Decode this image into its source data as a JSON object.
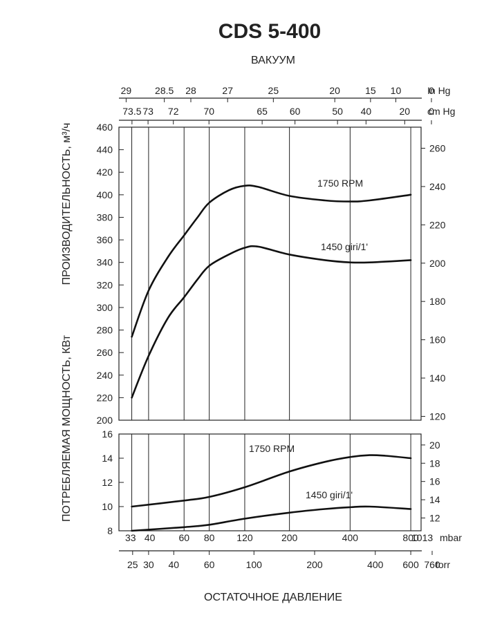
{
  "title": "CDS 5-400",
  "top_label": "ВАКУУМ",
  "bottom_label": "ОСТАТОЧНОЕ ДАВЛЕНИЕ",
  "left_label_top": "ПРОИЗВОДИТЕЛЬНОСТЬ, м³/ч",
  "left_label_bottom": "ПОТРЕБЛЯЕМАЯ МОЩНОСТЬ, КВт",
  "colors": {
    "line": "#111111",
    "text": "#222222",
    "background": "#ffffff"
  },
  "chart_data": {
    "type": "line",
    "x_scale": "log",
    "x_unit": "mbar",
    "mbar_axis": {
      "ticks": [
        {
          "value": 33,
          "label": "33"
        },
        {
          "value": 40,
          "label": "40"
        },
        {
          "value": 60,
          "label": "60"
        },
        {
          "value": 80,
          "label": "80"
        },
        {
          "value": 120,
          "label": "120"
        },
        {
          "value": 200,
          "label": "200"
        },
        {
          "value": 400,
          "label": "400"
        },
        {
          "value": 800,
          "label": "800"
        },
        {
          "value": 1013,
          "label": "1013"
        }
      ],
      "unit": "mbar"
    },
    "torr_axis": {
      "ticks": [
        {
          "value": 25,
          "label": "25"
        },
        {
          "value": 30,
          "label": "30"
        },
        {
          "value": 40,
          "label": "40"
        },
        {
          "value": 60,
          "label": "60"
        },
        {
          "value": 100,
          "label": "100"
        },
        {
          "value": 200,
          "label": "200"
        },
        {
          "value": 400,
          "label": "400"
        },
        {
          "value": 600,
          "label": "600"
        },
        {
          "value": 760,
          "label": "760"
        }
      ],
      "unit": "torr"
    },
    "inhg_axis": {
      "ticks": [
        {
          "value": 29,
          "label": "29"
        },
        {
          "value": 28.5,
          "label": "28.5"
        },
        {
          "value": 28,
          "label": "28"
        },
        {
          "value": 27,
          "label": "27"
        },
        {
          "value": 25,
          "label": "25"
        },
        {
          "value": 20,
          "label": "20"
        },
        {
          "value": 15,
          "label": "15"
        },
        {
          "value": 10,
          "label": "10"
        },
        {
          "value": 0,
          "label": "0"
        }
      ],
      "unit": "In Hg"
    },
    "cmhg_axis": {
      "ticks": [
        {
          "value": 73.5,
          "label": "73.5"
        },
        {
          "value": 73,
          "label": "73"
        },
        {
          "value": 72,
          "label": "72"
        },
        {
          "value": 70,
          "label": "70"
        },
        {
          "value": 65,
          "label": "65"
        },
        {
          "value": 60,
          "label": "60"
        },
        {
          "value": 50,
          "label": "50"
        },
        {
          "value": 40,
          "label": "40"
        },
        {
          "value": 20,
          "label": "20"
        },
        {
          "value": 0,
          "label": "0"
        }
      ],
      "unit": "cm Hg"
    },
    "grid_x_mbar": [
      33,
      40,
      60,
      80,
      120,
      200,
      400,
      800
    ],
    "capacity_panel": {
      "ylim": [
        200,
        460
      ],
      "yticks": [
        200,
        220,
        240,
        260,
        280,
        300,
        320,
        340,
        360,
        380,
        400,
        420,
        440,
        460
      ],
      "right_ylim": [
        118,
        271
      ],
      "right_yticks": [
        120,
        140,
        160,
        180,
        200,
        220,
        240,
        260
      ],
      "series": [
        {
          "name": "1750 RPM",
          "points": [
            [
              33,
              274
            ],
            [
              40,
              315
            ],
            [
              50,
              345
            ],
            [
              60,
              364
            ],
            [
              70,
              380
            ],
            [
              80,
              393
            ],
            [
              100,
              404
            ],
            [
              120,
              408
            ],
            [
              140,
              407
            ],
            [
              200,
              399
            ],
            [
              300,
              395
            ],
            [
              400,
              394
            ],
            [
              500,
              395
            ],
            [
              800,
              400
            ]
          ]
        },
        {
          "name": "1450 giri/1'",
          "points": [
            [
              33,
              220
            ],
            [
              40,
              257
            ],
            [
              50,
              291
            ],
            [
              60,
              309
            ],
            [
              70,
              325
            ],
            [
              80,
              337
            ],
            [
              100,
              347
            ],
            [
              120,
              353
            ],
            [
              140,
              354
            ],
            [
              200,
              347
            ],
            [
              300,
              342
            ],
            [
              400,
              340
            ],
            [
              500,
              340
            ],
            [
              800,
              342
            ]
          ]
        }
      ]
    },
    "power_panel": {
      "ylim": [
        8,
        16
      ],
      "yticks": [
        8,
        10,
        12,
        14,
        16
      ],
      "right_ylim": [
        10.6,
        21.2
      ],
      "right_yticks": [
        12,
        14,
        16,
        18,
        20
      ],
      "series": [
        {
          "name": "1750 RPM",
          "points": [
            [
              33,
              10.0
            ],
            [
              60,
              10.5
            ],
            [
              80,
              10.8
            ],
            [
              120,
              11.6
            ],
            [
              200,
              12.9
            ],
            [
              300,
              13.7
            ],
            [
              400,
              14.1
            ],
            [
              500,
              14.25
            ],
            [
              600,
              14.2
            ],
            [
              800,
              14.0
            ]
          ]
        },
        {
          "name": "1450 giri/1'",
          "points": [
            [
              33,
              8.0
            ],
            [
              60,
              8.3
            ],
            [
              80,
              8.5
            ],
            [
              120,
              9.0
            ],
            [
              200,
              9.5
            ],
            [
              300,
              9.8
            ],
            [
              400,
              9.95
            ],
            [
              500,
              10.0
            ],
            [
              800,
              9.8
            ]
          ]
        }
      ]
    }
  }
}
